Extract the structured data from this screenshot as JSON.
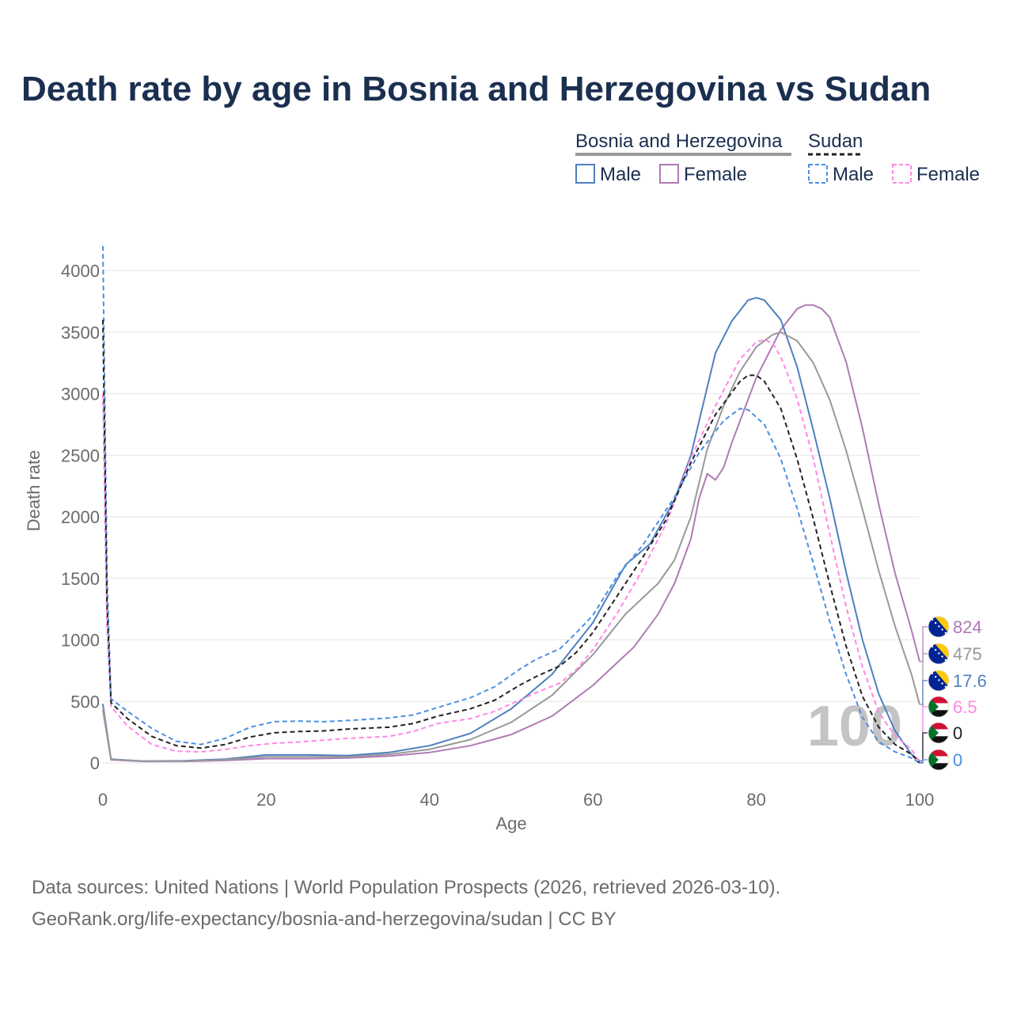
{
  "title": "Death rate by age in Bosnia and Herzegovina vs Sudan",
  "source_line1": "Data sources: United Nations | World Population Prospects (2026, retrieved 2026-03-10).",
  "source_line2": "GeoRank.org/life-expectancy/bosnia-and-herzegovina/sudan | CC BY",
  "legend": {
    "group1": "Bosnia and Herzegovina",
    "group2": "Sudan",
    "male": "Male",
    "female": "Female"
  },
  "chart_data": {
    "type": "line",
    "xlabel": "Age",
    "ylabel": "Death rate",
    "xlim": [
      0,
      100
    ],
    "ylim": [
      0,
      4200
    ],
    "xticks": [
      0,
      20,
      40,
      60,
      80,
      100
    ],
    "yticks": [
      0,
      500,
      1000,
      1500,
      2000,
      2500,
      3000,
      3500,
      4000
    ],
    "grid": true,
    "watermark": "100",
    "series": [
      {
        "name": "Bosnia and Herzegovina Male",
        "color": "#4f7fbf",
        "dash": "solid",
        "end_label": "17.6",
        "flag": "bosnia",
        "points": [
          [
            0,
            480
          ],
          [
            1,
            30
          ],
          [
            5,
            15
          ],
          [
            10,
            18
          ],
          [
            15,
            30
          ],
          [
            20,
            65
          ],
          [
            25,
            65
          ],
          [
            30,
            60
          ],
          [
            35,
            85
          ],
          [
            40,
            140
          ],
          [
            45,
            240
          ],
          [
            50,
            440
          ],
          [
            55,
            720
          ],
          [
            60,
            1140
          ],
          [
            64,
            1610
          ],
          [
            67,
            1780
          ],
          [
            70,
            2140
          ],
          [
            72,
            2500
          ],
          [
            75,
            3330
          ],
          [
            77,
            3590
          ],
          [
            79,
            3760
          ],
          [
            80,
            3780
          ],
          [
            81,
            3760
          ],
          [
            83,
            3600
          ],
          [
            85,
            3220
          ],
          [
            87,
            2700
          ],
          [
            89,
            2150
          ],
          [
            91,
            1550
          ],
          [
            93,
            1000
          ],
          [
            95,
            560
          ],
          [
            97,
            260
          ],
          [
            99,
            70
          ],
          [
            100,
            18
          ]
        ]
      },
      {
        "name": "Bosnia and Herzegovina Female",
        "color": "#b07ab5",
        "dash": "solid",
        "end_label": "824",
        "flag": "bosnia",
        "points": [
          [
            0,
            430
          ],
          [
            1,
            25
          ],
          [
            5,
            12
          ],
          [
            10,
            12
          ],
          [
            15,
            20
          ],
          [
            20,
            35
          ],
          [
            25,
            35
          ],
          [
            30,
            40
          ],
          [
            35,
            55
          ],
          [
            40,
            85
          ],
          [
            45,
            140
          ],
          [
            50,
            230
          ],
          [
            55,
            380
          ],
          [
            60,
            630
          ],
          [
            65,
            940
          ],
          [
            68,
            1210
          ],
          [
            70,
            1460
          ],
          [
            72,
            1820
          ],
          [
            73,
            2150
          ],
          [
            74,
            2350
          ],
          [
            75,
            2300
          ],
          [
            76,
            2400
          ],
          [
            77,
            2600
          ],
          [
            80,
            3130
          ],
          [
            83,
            3520
          ],
          [
            85,
            3690
          ],
          [
            86,
            3720
          ],
          [
            87,
            3720
          ],
          [
            88,
            3690
          ],
          [
            89,
            3620
          ],
          [
            91,
            3260
          ],
          [
            93,
            2720
          ],
          [
            95,
            2100
          ],
          [
            97,
            1540
          ],
          [
            99,
            1080
          ],
          [
            100,
            824
          ]
        ]
      },
      {
        "name": "Bosnia and Herzegovina Total",
        "color": "#999999",
        "dash": "solid",
        "end_label": "475",
        "flag": "bosnia",
        "points": [
          [
            0,
            460
          ],
          [
            1,
            28
          ],
          [
            5,
            14
          ],
          [
            10,
            15
          ],
          [
            15,
            25
          ],
          [
            20,
            50
          ],
          [
            25,
            50
          ],
          [
            30,
            50
          ],
          [
            35,
            70
          ],
          [
            40,
            110
          ],
          [
            45,
            190
          ],
          [
            50,
            330
          ],
          [
            55,
            550
          ],
          [
            60,
            880
          ],
          [
            64,
            1210
          ],
          [
            68,
            1460
          ],
          [
            70,
            1650
          ],
          [
            72,
            2000
          ],
          [
            74,
            2550
          ],
          [
            76,
            2900
          ],
          [
            78,
            3180
          ],
          [
            80,
            3380
          ],
          [
            82,
            3480
          ],
          [
            83,
            3500
          ],
          [
            85,
            3430
          ],
          [
            87,
            3250
          ],
          [
            89,
            2950
          ],
          [
            91,
            2540
          ],
          [
            93,
            2060
          ],
          [
            95,
            1560
          ],
          [
            97,
            1110
          ],
          [
            99,
            720
          ],
          [
            100,
            475
          ]
        ]
      },
      {
        "name": "Sudan Male",
        "color": "#4a90e2",
        "dash": "dashed",
        "end_label": "0",
        "flag": "sudan",
        "points": [
          [
            0,
            4200
          ],
          [
            0.5,
            1500
          ],
          [
            1,
            520
          ],
          [
            3,
            420
          ],
          [
            6,
            280
          ],
          [
            9,
            175
          ],
          [
            12,
            150
          ],
          [
            15,
            200
          ],
          [
            18,
            290
          ],
          [
            21,
            335
          ],
          [
            24,
            340
          ],
          [
            27,
            335
          ],
          [
            30,
            345
          ],
          [
            35,
            365
          ],
          [
            38,
            390
          ],
          [
            41,
            450
          ],
          [
            45,
            530
          ],
          [
            48,
            620
          ],
          [
            51,
            760
          ],
          [
            53,
            840
          ],
          [
            56,
            930
          ],
          [
            58,
            1060
          ],
          [
            60,
            1200
          ],
          [
            63,
            1520
          ],
          [
            66,
            1760
          ],
          [
            70,
            2160
          ],
          [
            73,
            2520
          ],
          [
            76,
            2780
          ],
          [
            78,
            2880
          ],
          [
            79,
            2870
          ],
          [
            81,
            2750
          ],
          [
            83,
            2470
          ],
          [
            85,
            2070
          ],
          [
            87,
            1620
          ],
          [
            89,
            1150
          ],
          [
            91,
            720
          ],
          [
            93,
            370
          ],
          [
            95,
            170
          ],
          [
            97,
            90
          ],
          [
            99,
            40
          ],
          [
            100,
            0
          ]
        ]
      },
      {
        "name": "Sudan Female",
        "color": "#ff88e6",
        "dash": "dashed",
        "end_label": "6.5",
        "flag": "sudan",
        "points": [
          [
            0,
            3000
          ],
          [
            0.5,
            1100
          ],
          [
            1,
            460
          ],
          [
            3,
            300
          ],
          [
            6,
            150
          ],
          [
            9,
            95
          ],
          [
            12,
            90
          ],
          [
            15,
            110
          ],
          [
            18,
            140
          ],
          [
            21,
            160
          ],
          [
            24,
            170
          ],
          [
            27,
            185
          ],
          [
            30,
            200
          ],
          [
            35,
            215
          ],
          [
            38,
            255
          ],
          [
            41,
            320
          ],
          [
            45,
            360
          ],
          [
            48,
            420
          ],
          [
            51,
            510
          ],
          [
            53,
            570
          ],
          [
            56,
            650
          ],
          [
            58,
            760
          ],
          [
            60,
            920
          ],
          [
            63,
            1220
          ],
          [
            66,
            1560
          ],
          [
            69,
            1950
          ],
          [
            72,
            2480
          ],
          [
            75,
            2900
          ],
          [
            78,
            3280
          ],
          [
            80,
            3420
          ],
          [
            81,
            3440
          ],
          [
            82,
            3410
          ],
          [
            83,
            3300
          ],
          [
            85,
            2960
          ],
          [
            87,
            2470
          ],
          [
            89,
            1860
          ],
          [
            91,
            1270
          ],
          [
            93,
            780
          ],
          [
            95,
            410
          ],
          [
            97,
            220
          ],
          [
            99,
            110
          ],
          [
            100,
            6.5
          ]
        ]
      },
      {
        "name": "Sudan Total",
        "color": "#222222",
        "dash": "dashed",
        "end_label": "0",
        "flag": "sudan",
        "points": [
          [
            0,
            3600
          ],
          [
            0.5,
            1300
          ],
          [
            1,
            490
          ],
          [
            3,
            360
          ],
          [
            6,
            215
          ],
          [
            9,
            140
          ],
          [
            12,
            120
          ],
          [
            15,
            150
          ],
          [
            18,
            210
          ],
          [
            21,
            245
          ],
          [
            24,
            255
          ],
          [
            27,
            260
          ],
          [
            30,
            275
          ],
          [
            35,
            290
          ],
          [
            38,
            320
          ],
          [
            41,
            380
          ],
          [
            45,
            440
          ],
          [
            48,
            510
          ],
          [
            51,
            630
          ],
          [
            53,
            700
          ],
          [
            56,
            790
          ],
          [
            58,
            900
          ],
          [
            60,
            1060
          ],
          [
            63,
            1360
          ],
          [
            66,
            1660
          ],
          [
            69,
            1980
          ],
          [
            72,
            2440
          ],
          [
            75,
            2830
          ],
          [
            78,
            3100
          ],
          [
            79,
            3150
          ],
          [
            80,
            3150
          ],
          [
            81,
            3100
          ],
          [
            83,
            2880
          ],
          [
            85,
            2470
          ],
          [
            87,
            1980
          ],
          [
            89,
            1450
          ],
          [
            91,
            950
          ],
          [
            93,
            540
          ],
          [
            95,
            290
          ],
          [
            97,
            150
          ],
          [
            99,
            70
          ],
          [
            100,
            0
          ]
        ]
      }
    ]
  }
}
